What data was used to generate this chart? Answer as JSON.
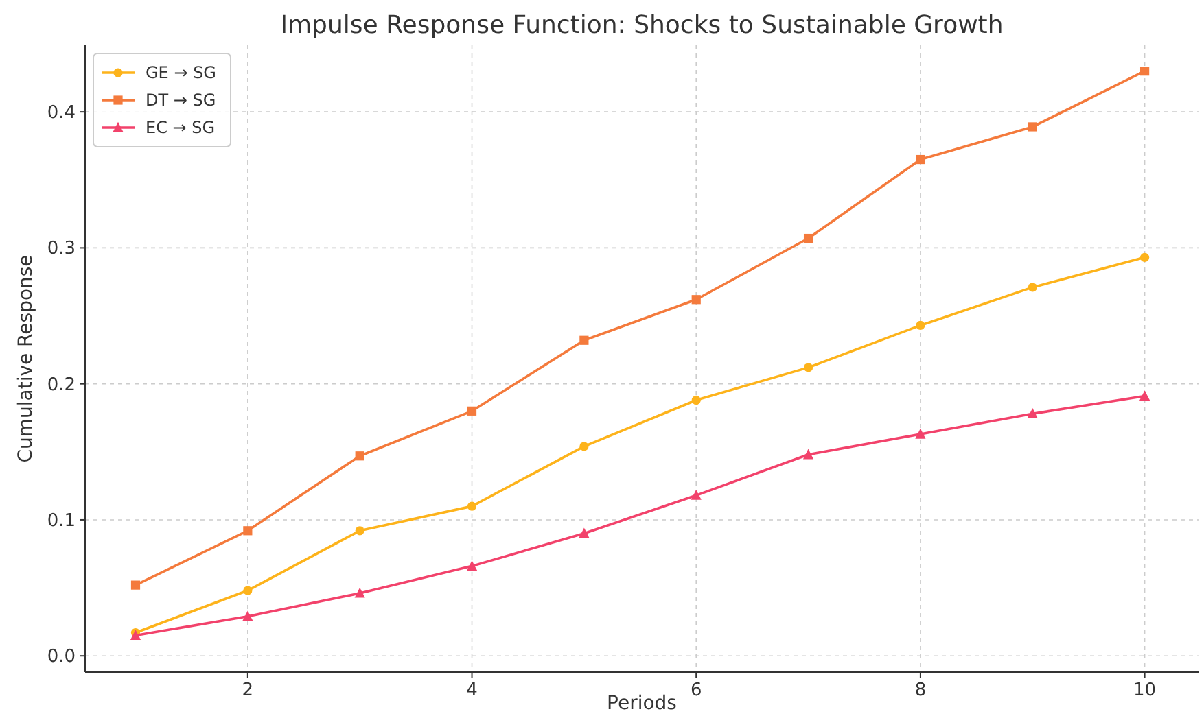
{
  "chart_data": {
    "type": "line",
    "title": "Impulse Response Function: Shocks to Sustainable Growth",
    "xlabel": "Periods",
    "ylabel": "Cumulative Response",
    "x": [
      1,
      2,
      3,
      4,
      5,
      6,
      7,
      8,
      9,
      10
    ],
    "series": [
      {
        "name": "GE → SG",
        "color": "#fdb31b",
        "marker": "circle",
        "values": [
          0.017,
          0.048,
          0.092,
          0.11,
          0.154,
          0.188,
          0.212,
          0.243,
          0.271,
          0.293
        ]
      },
      {
        "name": "DT → SG",
        "color": "#f47a3c",
        "marker": "square",
        "values": [
          0.052,
          0.092,
          0.147,
          0.18,
          0.232,
          0.262,
          0.307,
          0.365,
          0.389,
          0.43
        ]
      },
      {
        "name": "EC → SG",
        "color": "#f2426b",
        "marker": "triangle",
        "values": [
          0.015,
          0.029,
          0.046,
          0.066,
          0.09,
          0.118,
          0.148,
          0.163,
          0.178,
          0.191
        ]
      }
    ],
    "xlim": [
      0.55,
      10.48
    ],
    "xticks": [
      2,
      4,
      6,
      8,
      10
    ],
    "ylim": [
      -0.012,
      0.449
    ],
    "yticks": [
      {
        "value": 0,
        "label": "0.0"
      },
      0.1,
      0.2,
      0.3,
      0.4
    ],
    "grid": true,
    "legend": "top left",
    "line_style": "solid"
  }
}
